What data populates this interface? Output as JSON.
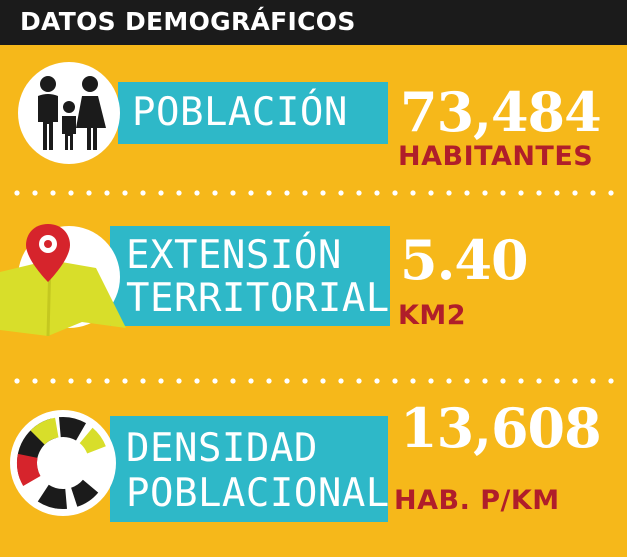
{
  "header": {
    "title": "DATOS DEMOGRÁFICOS"
  },
  "sections": [
    {
      "icon": "family-icon",
      "label_lines": [
        "POBLACIÓN"
      ],
      "value": "73,484",
      "unit": "HABITANTES"
    },
    {
      "icon": "map-pin-icon",
      "label_lines": [
        "EXTENSIÓN",
        "TERRITORIAL"
      ],
      "value": "5.40",
      "unit": "KM2"
    },
    {
      "icon": "density-donut-icon",
      "label_lines": [
        "DENSIDAD",
        "POBLACIONAL"
      ],
      "value": "13,608",
      "unit": "HAB. P/KM"
    }
  ],
  "colors": {
    "background": "#F6B81A",
    "header_bar": "#1B1B1B",
    "label_box": "#2EB8C8",
    "unit_text": "#B01E2A",
    "map_green": "#D8DE2A",
    "pin_red": "#D6242C"
  }
}
